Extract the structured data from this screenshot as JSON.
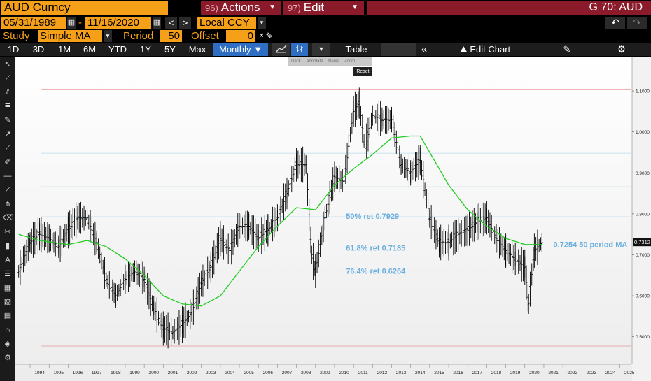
{
  "header": {
    "ticker": "AUD Curncy",
    "actions_num": "96)",
    "actions_label": "Actions",
    "edit_num": "97)",
    "edit_label": "Edit",
    "right_title": "G 70: AUD"
  },
  "range": {
    "start": "05/31/1989",
    "end": "11/16/2020",
    "currency": "Local CCY"
  },
  "study": {
    "study_label": "Study",
    "study_value": "Simple MA",
    "period_label": "Period",
    "period_value": "50",
    "offset_label": "Offset",
    "offset_value": "0"
  },
  "toolbar": {
    "periods": [
      "1D",
      "3D",
      "1M",
      "6M",
      "YTD",
      "1Y",
      "5Y",
      "Max"
    ],
    "frequency": "Monthly",
    "table_label": "Table",
    "edit_chart_label": "Edit Chart"
  },
  "chart_overlay": {
    "tools": [
      "Track",
      "Annotate",
      "News",
      "Zoom"
    ],
    "reset_label": "Reset"
  },
  "chart_data": {
    "type": "line",
    "series": [
      {
        "name": "AUD Curncy",
        "x": [
          1993.4,
          1994.0,
          1994.5,
          1995.0,
          1995.5,
          1996.0,
          1996.5,
          1997.0,
          1997.5,
          1998.0,
          1998.5,
          1999.0,
          1999.5,
          2000.0,
          2000.5,
          2001.0,
          2001.5,
          2002.0,
          2002.5,
          2003.0,
          2003.5,
          2004.0,
          2004.5,
          2005.0,
          2005.5,
          2006.0,
          2006.5,
          2007.0,
          2007.5,
          2008.0,
          2008.5,
          2008.8,
          2009.0,
          2009.5,
          2010.0,
          2010.5,
          2011.0,
          2011.3,
          2011.6,
          2012.0,
          2012.5,
          2013.0,
          2013.5,
          2014.0,
          2014.5,
          2015.0,
          2015.5,
          2016.0,
          2016.5,
          2017.0,
          2017.5,
          2018.0,
          2018.5,
          2019.0,
          2019.5,
          2020.0,
          2020.2,
          2020.5,
          2020.9
        ],
        "values": [
          0.66,
          0.73,
          0.75,
          0.74,
          0.72,
          0.76,
          0.79,
          0.79,
          0.73,
          0.64,
          0.6,
          0.64,
          0.66,
          0.64,
          0.57,
          0.52,
          0.51,
          0.53,
          0.56,
          0.63,
          0.67,
          0.74,
          0.71,
          0.77,
          0.77,
          0.74,
          0.76,
          0.79,
          0.85,
          0.92,
          0.92,
          0.7,
          0.66,
          0.79,
          0.89,
          0.88,
          1.05,
          1.07,
          0.96,
          1.04,
          1.03,
          1.03,
          0.92,
          0.9,
          0.93,
          0.79,
          0.73,
          0.73,
          0.75,
          0.76,
          0.78,
          0.79,
          0.74,
          0.71,
          0.69,
          0.67,
          0.58,
          0.71,
          0.73
        ]
      },
      {
        "name": "0.7254 50 period MA",
        "x": [
          1993.4,
          1994.5,
          1996.0,
          1997.0,
          1998.0,
          1999.0,
          2000.0,
          2001.0,
          2002.0,
          2003.0,
          2004.0,
          2005.0,
          2006.0,
          2007.0,
          2008.0,
          2009.0,
          2010.0,
          2011.0,
          2012.0,
          2013.0,
          2014.0,
          2014.5,
          2015.0,
          2016.0,
          2017.0,
          2018.0,
          2019.0,
          2020.0,
          2020.9
        ],
        "values": [
          0.75,
          0.735,
          0.725,
          0.735,
          0.72,
          0.69,
          0.65,
          0.6,
          0.58,
          0.575,
          0.6,
          0.66,
          0.72,
          0.77,
          0.815,
          0.81,
          0.87,
          0.91,
          0.945,
          0.985,
          0.99,
          0.99,
          0.95,
          0.87,
          0.81,
          0.77,
          0.74,
          0.725,
          0.725
        ]
      }
    ],
    "annotations": [
      {
        "label": "50% ret 0.7929",
        "value": 0.7929
      },
      {
        "label": "61.8% ret 0.7185",
        "value": 0.7185
      },
      {
        "label": "76.4% ret 0.6264",
        "value": 0.6264
      }
    ],
    "ma_label": "0.7254 50 period MA",
    "last_value": "0.7312",
    "yticks": [
      "0.5000",
      "0.6000",
      "0.7000",
      "0.8000",
      "0.9000",
      "1.0000",
      "1.1000"
    ],
    "xticks": [
      "1994",
      "1995",
      "1996",
      "1997",
      "1998",
      "1999",
      "2000",
      "2001",
      "2002",
      "2003",
      "2004",
      "2005",
      "2006",
      "2007",
      "2008",
      "2009",
      "2010",
      "2011",
      "2012",
      "2013",
      "2014",
      "2015",
      "2016",
      "2017",
      "2018",
      "2019",
      "2020",
      "2021",
      "2022",
      "2023",
      "2024",
      "2025"
    ],
    "ylim": [
      0.45,
      1.17
    ],
    "xlim": [
      1993.3,
      2025.6
    ],
    "fib_levels": [
      1.1028,
      0.948,
      0.8661,
      0.7929,
      0.7185,
      0.6264,
      0.4773
    ],
    "grid": false,
    "legend": "none",
    "colors": {
      "price": "#000000",
      "ma": "#22cc22",
      "annotation": "#6aaee0",
      "fib_top_bottom": "#e88080",
      "fib_mid": "#80c0e0"
    }
  }
}
